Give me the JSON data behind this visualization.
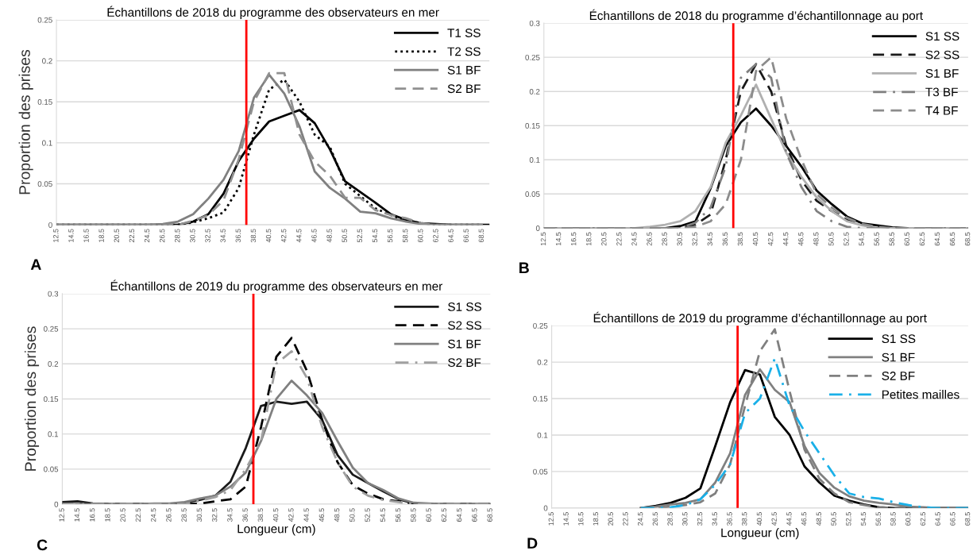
{
  "chart_data": [
    {
      "type": "line",
      "title": "Échantillons de 2018 du programme des observateurs en mer",
      "ylabel": "Proportion des prises",
      "annotations": [
        "A"
      ],
      "xlim": [
        12.5,
        69.5
      ],
      "xticks": [
        12.5,
        14.5,
        16.5,
        18.5,
        20.5,
        22.5,
        24.5,
        26.5,
        28.5,
        30.5,
        32.5,
        34.5,
        36.5,
        38.5,
        40.5,
        42.5,
        44.5,
        46.5,
        48.5,
        50.5,
        52.5,
        54.5,
        56.5,
        58.5,
        60.5,
        62.5,
        64.5,
        66.5,
        68.5
      ],
      "ylim": [
        0,
        0.25
      ],
      "yticks": [
        0,
        0.05,
        0.1,
        0.15,
        0.2,
        0.25
      ],
      "grid": "y",
      "legend": "top right",
      "ref_lines": [
        {
          "axis": "x",
          "value": 37.5,
          "color": "#ff0000"
        }
      ],
      "series": [
        {
          "name": "T1 SS",
          "color": "#000000",
          "line_style": "solid",
          "x": [
            12.5,
            28.5,
            30.5,
            32.5,
            34.5,
            36.5,
            38.5,
            40.5,
            42.5,
            44.5,
            46.5,
            48.5,
            50.5,
            52.5,
            54.5,
            56.5,
            58.5,
            60.5,
            62.5,
            64.5,
            69.5
          ],
          "values": [
            0,
            0,
            0.004,
            0.013,
            0.038,
            0.078,
            0.105,
            0.126,
            0.133,
            0.14,
            0.124,
            0.092,
            0.053,
            0.04,
            0.027,
            0.013,
            0.006,
            0.002,
            0.001,
            0,
            0
          ]
        },
        {
          "name": "T2 SS",
          "color": "#000000",
          "line_style": "dotted",
          "x": [
            12.5,
            28.5,
            30.5,
            32.5,
            34.5,
            36.5,
            38.5,
            40.5,
            42.5,
            44.5,
            46.5,
            48.5,
            50.5,
            52.5,
            54.5,
            56.5,
            58.5,
            60.5,
            62.5,
            68.5
          ],
          "values": [
            0,
            0,
            0.003,
            0.008,
            0.015,
            0.045,
            0.11,
            0.165,
            0.177,
            0.15,
            0.11,
            0.095,
            0.05,
            0.035,
            0.02,
            0.012,
            0.005,
            0.002,
            0,
            0
          ]
        },
        {
          "name": "S1 BF",
          "color": "#808080",
          "line_style": "solid",
          "x": [
            12.5,
            24.5,
            26.5,
            28.5,
            30.5,
            32.5,
            34.5,
            36.5,
            38.5,
            40.5,
            42.5,
            44.5,
            46.5,
            48.5,
            50.5,
            52.5,
            54.5,
            56.5,
            58.5,
            60.5,
            62.5,
            68.5
          ],
          "values": [
            0,
            0,
            0.001,
            0.004,
            0.013,
            0.032,
            0.055,
            0.09,
            0.155,
            0.183,
            0.16,
            0.12,
            0.065,
            0.045,
            0.032,
            0.016,
            0.014,
            0.008,
            0.004,
            0.001,
            0,
            0
          ]
        },
        {
          "name": "S2 BF",
          "color": "#909090",
          "line_style": "dashed",
          "x": [
            12.5,
            28.5,
            30.5,
            32.5,
            34.5,
            36.5,
            38.5,
            40.5,
            42.5,
            44.5,
            46.5,
            48.5,
            50.5,
            52.5,
            54.5,
            56.5,
            58.5,
            60.5,
            62.5,
            68.5
          ],
          "values": [
            0,
            0,
            0.005,
            0.012,
            0.03,
            0.08,
            0.15,
            0.185,
            0.185,
            0.11,
            0.077,
            0.06,
            0.033,
            0.033,
            0.018,
            0.012,
            0.008,
            0.002,
            0,
            0
          ]
        }
      ]
    },
    {
      "type": "line",
      "title": "Échantillons de 2018 du programme d’échantillonnage au port",
      "annotations": [
        "B"
      ],
      "xlim": [
        12.5,
        68.5
      ],
      "xticks": [
        12.5,
        14.5,
        16.5,
        18.5,
        20.5,
        22.5,
        24.5,
        26.5,
        28.5,
        30.5,
        32.5,
        34.5,
        36.5,
        38.5,
        40.5,
        42.5,
        44.5,
        46.5,
        48.5,
        50.5,
        52.5,
        54.5,
        56.5,
        58.5,
        60.5,
        62.5,
        64.5,
        66.5,
        68.5
      ],
      "ylim": [
        0,
        0.3
      ],
      "yticks": [
        0,
        0.05,
        0.1,
        0.15,
        0.2,
        0.25,
        0.3
      ],
      "grid": "y",
      "legend": "top right",
      "ref_lines": [
        {
          "axis": "x",
          "value": 37.5,
          "color": "#ff0000"
        }
      ],
      "series": [
        {
          "name": "S1 SS",
          "color": "#000000",
          "line_style": "solid",
          "x": [
            12.5,
            28.5,
            30.5,
            32.5,
            34.5,
            36.5,
            38.5,
            40.5,
            42.5,
            44.5,
            46.5,
            48.5,
            50.5,
            52.5,
            54.5,
            56.5,
            58.5,
            60.5,
            68.5
          ],
          "values": [
            0,
            0,
            0.003,
            0.01,
            0.058,
            0.12,
            0.155,
            0.175,
            0.15,
            0.12,
            0.09,
            0.055,
            0.035,
            0.017,
            0.007,
            0.004,
            0.001,
            0,
            0
          ]
        },
        {
          "name": "S2 SS",
          "color": "#1a1a1a",
          "line_style": "dashed",
          "x": [
            12.5,
            30.5,
            32.5,
            34.5,
            36.5,
            38.5,
            40.5,
            42.5,
            44.5,
            46.5,
            48.5,
            50.5,
            52.5,
            54.5,
            56.5,
            58.5,
            68.5
          ],
          "values": [
            0,
            0,
            0.005,
            0.02,
            0.1,
            0.2,
            0.24,
            0.2,
            0.12,
            0.07,
            0.04,
            0.025,
            0.012,
            0.005,
            0.002,
            0,
            0
          ]
        },
        {
          "name": "S1 BF",
          "color": "#b0b0b0",
          "line_style": "solid",
          "x": [
            12.5,
            24.5,
            26.5,
            28.5,
            30.5,
            32.5,
            34.5,
            36.5,
            38.5,
            40.5,
            42.5,
            44.5,
            46.5,
            48.5,
            50.5,
            52.5,
            54.5,
            56.5,
            68.5
          ],
          "values": [
            0,
            0,
            0.002,
            0.005,
            0.01,
            0.025,
            0.06,
            0.125,
            0.165,
            0.21,
            0.16,
            0.11,
            0.075,
            0.045,
            0.025,
            0.01,
            0.004,
            0,
            0
          ]
        },
        {
          "name": "T3 BF",
          "color": "#808080",
          "line_style": "dashdot",
          "x": [
            12.5,
            30.5,
            32.5,
            34.5,
            36.5,
            38.5,
            40.5,
            42.5,
            44.5,
            46.5,
            48.5,
            50.5,
            52.5,
            54.5,
            68.5
          ],
          "values": [
            0,
            0,
            0.008,
            0.03,
            0.09,
            0.22,
            0.24,
            0.22,
            0.11,
            0.06,
            0.025,
            0.01,
            0.002,
            0,
            0
          ]
        },
        {
          "name": "T4 BF",
          "color": "#8c8c8c",
          "line_style": "dashed",
          "x": [
            12.5,
            30.5,
            32.5,
            34.5,
            36.5,
            38.5,
            40.5,
            42.5,
            44.5,
            46.5,
            48.5,
            50.5,
            52.5,
            54.5,
            56.5,
            58.5,
            68.5
          ],
          "values": [
            0,
            0,
            0.002,
            0.01,
            0.035,
            0.1,
            0.23,
            0.25,
            0.16,
            0.1,
            0.05,
            0.03,
            0.015,
            0.006,
            0.002,
            0,
            0
          ]
        }
      ]
    },
    {
      "type": "line",
      "title": "Échantillons de 2019 du programme des observateurs en mer",
      "ylabel": "Proportion des prises",
      "xlabel": "Longueur (cm)",
      "annotations": [
        "C"
      ],
      "xlim": [
        12.5,
        68.5
      ],
      "xticks": [
        12.5,
        14.5,
        16.5,
        18.5,
        20.5,
        22.5,
        24.5,
        26.5,
        28.5,
        30.5,
        32.5,
        34.5,
        36.5,
        38.5,
        40.5,
        42.5,
        44.5,
        46.5,
        48.5,
        50.5,
        52.5,
        54.5,
        56.5,
        58.5,
        60.5,
        62.5,
        64.5,
        66.5,
        68.5
      ],
      "ylim": [
        0,
        0.3
      ],
      "yticks": [
        0,
        0.05,
        0.1,
        0.15,
        0.2,
        0.25,
        0.3
      ],
      "grid": "y",
      "legend": "top right",
      "ref_lines": [
        {
          "axis": "x",
          "value": 37.5,
          "color": "#ff0000"
        }
      ],
      "series": [
        {
          "name": "S1 SS",
          "color": "#1a1a1a",
          "line_style": "solid",
          "x": [
            12.5,
            14.5,
            16.5,
            18.5,
            26.5,
            28.5,
            30.5,
            32.5,
            34.5,
            36.5,
            38.5,
            40.5,
            42.5,
            44.5,
            46.5,
            48.5,
            50.5,
            52.5,
            54.5,
            56.5,
            58.5,
            60.5,
            68.5
          ],
          "values": [
            0.003,
            0.004,
            0.001,
            0,
            0,
            0.002,
            0.006,
            0.012,
            0.032,
            0.08,
            0.14,
            0.146,
            0.143,
            0.146,
            0.12,
            0.07,
            0.042,
            0.03,
            0.018,
            0.007,
            0.001,
            0,
            0
          ]
        },
        {
          "name": "S2 SS",
          "color": "#000000",
          "line_style": "dashed",
          "x": [
            12.5,
            28.5,
            30.5,
            32.5,
            34.5,
            36.5,
            38.5,
            40.5,
            42.5,
            44.5,
            46.5,
            48.5,
            50.5,
            52.5,
            54.5,
            56.5,
            58.5,
            60.5,
            68.5
          ],
          "values": [
            0,
            0,
            0.001,
            0.004,
            0.007,
            0.025,
            0.11,
            0.21,
            0.237,
            0.19,
            0.12,
            0.06,
            0.027,
            0.015,
            0.007,
            0.004,
            0.001,
            0,
            0
          ]
        },
        {
          "name": "S1 BF",
          "color": "#808080",
          "line_style": "solid",
          "x": [
            12.5,
            22.5,
            24.5,
            26.5,
            28.5,
            30.5,
            32.5,
            34.5,
            36.5,
            38.5,
            40.5,
            42.5,
            44.5,
            46.5,
            48.5,
            50.5,
            52.5,
            54.5,
            56.5,
            58.5,
            60.5,
            62.5,
            68.5
          ],
          "values": [
            0,
            0,
            0.001,
            0.001,
            0.003,
            0.008,
            0.012,
            0.025,
            0.045,
            0.09,
            0.15,
            0.176,
            0.155,
            0.13,
            0.09,
            0.052,
            0.03,
            0.02,
            0.008,
            0.002,
            0.001,
            0,
            0
          ]
        },
        {
          "name": "S2 BF",
          "color": "#a0a0a0",
          "line_style": "dashdot",
          "x": [
            12.5,
            28.5,
            30.5,
            32.5,
            34.5,
            36.5,
            38.5,
            40.5,
            42.5,
            44.5,
            46.5,
            48.5,
            50.5,
            52.5,
            54.5,
            56.5,
            58.5,
            68.5
          ],
          "values": [
            0,
            0,
            0.005,
            0.01,
            0.02,
            0.05,
            0.09,
            0.2,
            0.218,
            0.18,
            0.11,
            0.06,
            0.025,
            0.012,
            0.006,
            0.003,
            0,
            0
          ]
        }
      ]
    },
    {
      "type": "line",
      "title": "Échantillons de 2019 du programme d’échantillonnage au port",
      "xlabel": "Longueur (cm)",
      "annotations": [
        "D"
      ],
      "xlim": [
        12.5,
        68.5
      ],
      "xticks": [
        12.5,
        14.5,
        16.5,
        18.5,
        20.5,
        22.5,
        24.5,
        26.5,
        28.5,
        30.5,
        32.5,
        34.5,
        36.5,
        38.5,
        40.5,
        42.5,
        44.5,
        46.5,
        48.5,
        50.5,
        52.5,
        54.5,
        56.5,
        58.5,
        60.5,
        62.5,
        64.5,
        66.5,
        68.5
      ],
      "ylim": [
        0,
        0.25
      ],
      "yticks": [
        0,
        0.05,
        0.1,
        0.15,
        0.2,
        0.25
      ],
      "grid": "y",
      "legend": "top right",
      "ref_lines": [
        {
          "axis": "x",
          "value": 37.5,
          "color": "#ff0000"
        }
      ],
      "series": [
        {
          "name": "S1 SS",
          "color": "#000000",
          "line_style": "solid",
          "x": [
            24.5,
            26.5,
            28.5,
            30.5,
            32.5,
            34.5,
            36.5,
            38.5,
            40.5,
            42.5,
            44.5,
            46.5,
            48.5,
            50.5,
            52.5,
            54.5,
            56.5,
            58.5,
            68.5
          ],
          "values": [
            0,
            0.003,
            0.007,
            0.014,
            0.027,
            0.085,
            0.145,
            0.189,
            0.183,
            0.125,
            0.1,
            0.057,
            0.035,
            0.017,
            0.01,
            0.005,
            0.001,
            0,
            0
          ]
        },
        {
          "name": "S1 BF",
          "color": "#808080",
          "line_style": "solid",
          "x": [
            24.5,
            26.5,
            28.5,
            30.5,
            32.5,
            34.5,
            36.5,
            38.5,
            40.5,
            42.5,
            44.5,
            46.5,
            48.5,
            50.5,
            52.5,
            54.5,
            56.5,
            58.5,
            60.5,
            62.5,
            64.5,
            68.5
          ],
          "values": [
            0,
            0.002,
            0.005,
            0.007,
            0.012,
            0.035,
            0.075,
            0.155,
            0.19,
            0.162,
            0.145,
            0.085,
            0.048,
            0.028,
            0.016,
            0.01,
            0.007,
            0.005,
            0.002,
            0.001,
            0,
            0
          ]
        },
        {
          "name": "S2 BF",
          "color": "#808080",
          "line_style": "dashed",
          "x": [
            24.5,
            26.5,
            28.5,
            30.5,
            32.5,
            34.5,
            36.5,
            38.5,
            40.5,
            42.5,
            44.5,
            46.5,
            48.5,
            50.5,
            52.5,
            54.5,
            56.5,
            58.5,
            68.5
          ],
          "values": [
            0,
            0,
            0.002,
            0.004,
            0.008,
            0.02,
            0.06,
            0.14,
            0.215,
            0.245,
            0.16,
            0.08,
            0.04,
            0.02,
            0.008,
            0.004,
            0.001,
            0,
            0
          ]
        },
        {
          "name": "Petites mailles",
          "color": "#1ab0e8",
          "line_style": "dashdot",
          "x": [
            24.5,
            26.5,
            28.5,
            30.5,
            32.5,
            34.5,
            36.5,
            38.5,
            40.5,
            42.5,
            44.5,
            46.5,
            48.5,
            50.5,
            52.5,
            54.5,
            56.5,
            58.5,
            60.5,
            62.5,
            64.5,
            68.5
          ],
          "values": [
            0,
            0,
            0.001,
            0.004,
            0.012,
            0.032,
            0.06,
            0.13,
            0.15,
            0.205,
            0.14,
            0.105,
            0.075,
            0.045,
            0.02,
            0.015,
            0.013,
            0.008,
            0.004,
            0.001,
            0,
            0
          ]
        }
      ]
    }
  ]
}
